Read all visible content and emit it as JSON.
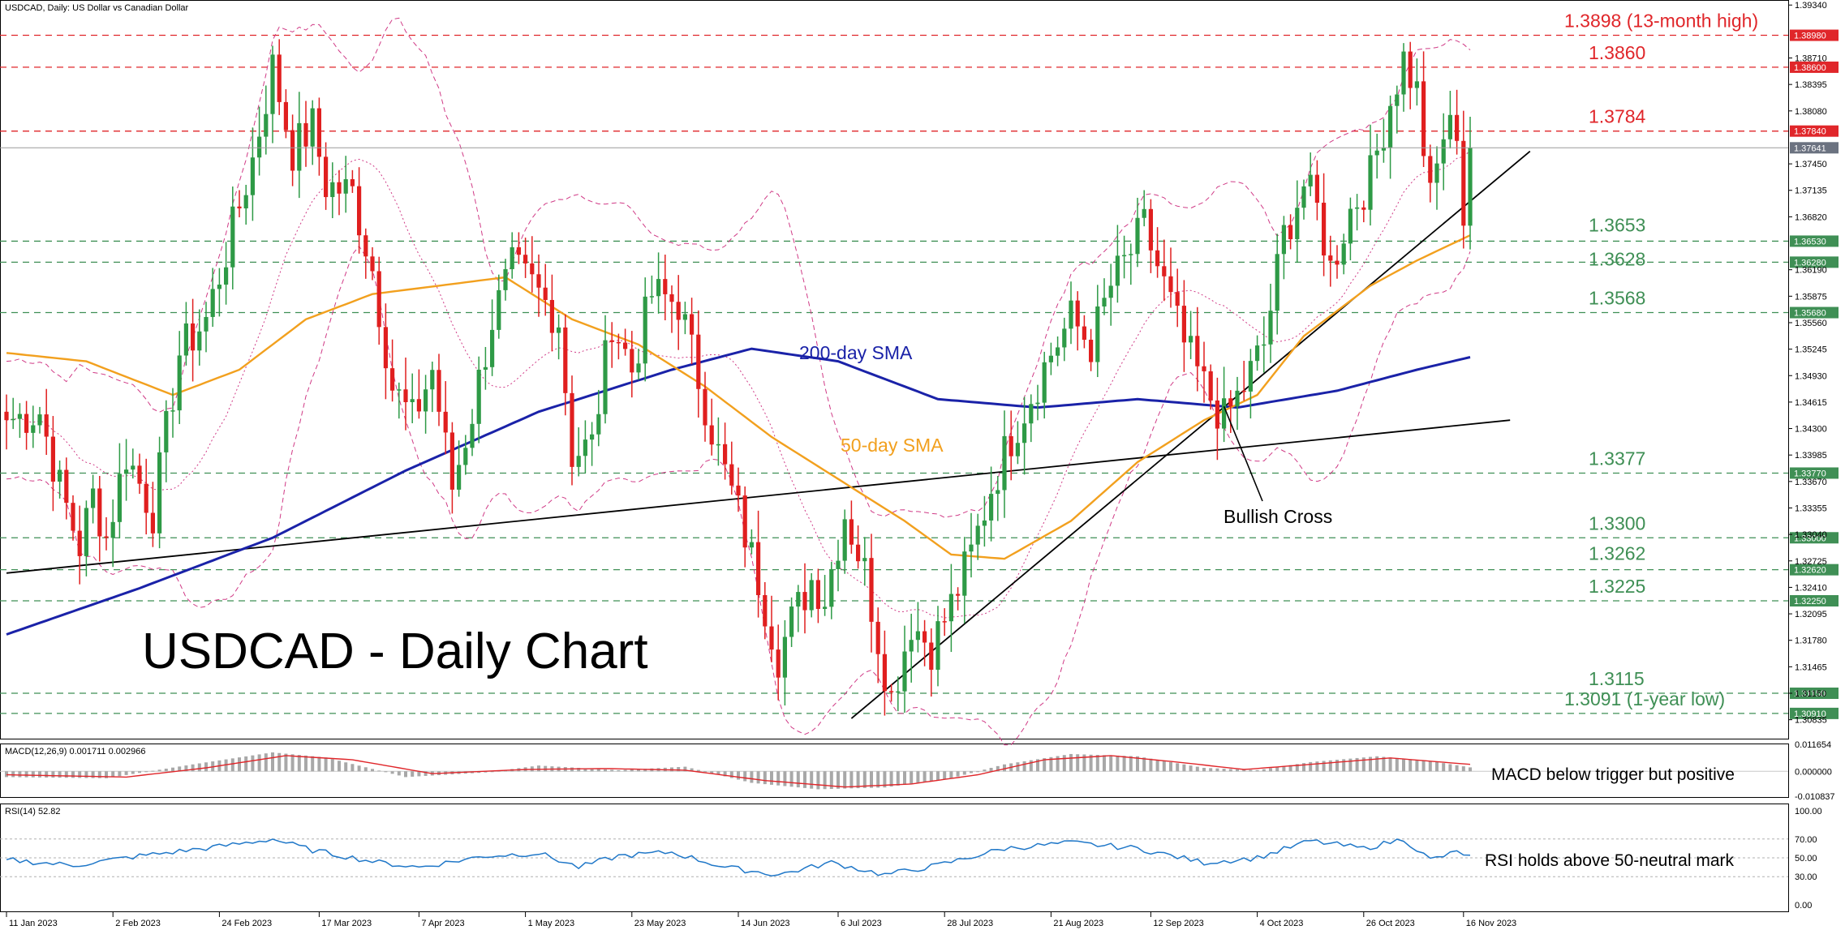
{
  "header": {
    "symbol_line": "USDCAD, Daily:  US Dollar vs Canadian Dollar"
  },
  "watermark_title": "USDCAD - Daily Chart",
  "colors": {
    "bull": "#2e9a46",
    "bear": "#e01f1f",
    "sma50": "#f2a01e",
    "sma200": "#1a22a8",
    "bollinger": "#d03a86",
    "resistance": "#e0262a",
    "support": "#3f8f55",
    "trendline": "#000000",
    "macd_hist": "#a8a8a8",
    "macd_signal": "#e0262a",
    "rsi_line": "#1f77c8",
    "price_tag": "#6b7280"
  },
  "price_axis": {
    "labels": [
      "1.39340",
      "1.38710",
      "1.38395",
      "1.38080",
      "1.37450",
      "1.37135",
      "1.36820",
      "1.36190",
      "1.35875",
      "1.35560",
      "1.35245",
      "1.34930",
      "1.34615",
      "1.34300",
      "1.33985",
      "1.33670",
      "1.33355",
      "1.33040",
      "1.32725",
      "1.32410",
      "1.32095",
      "1.31780",
      "1.31465",
      "1.31150",
      "1.30835"
    ],
    "current_price": "1.37641",
    "min": 1.306,
    "max": 1.394
  },
  "levels": [
    {
      "value": 1.3898,
      "text": "1.3898 (13-month high)",
      "tag": "1.38980",
      "kind": "resistance"
    },
    {
      "value": 1.386,
      "text": "1.3860",
      "tag": "1.38600",
      "kind": "resistance"
    },
    {
      "value": 1.3784,
      "text": "1.3784",
      "tag": "1.37840",
      "kind": "resistance"
    },
    {
      "value": 1.3653,
      "text": "1.3653",
      "tag": "1.36530",
      "kind": "support"
    },
    {
      "value": 1.3628,
      "text": "1.3628",
      "tag": "1.36280",
      "kind": "support"
    },
    {
      "value": 1.3568,
      "text": "1.3568",
      "tag": "1.35680",
      "kind": "support"
    },
    {
      "value": 1.3377,
      "text": "1.3377",
      "tag": "1.33770",
      "kind": "support"
    },
    {
      "value": 1.33,
      "text": "1.3300",
      "tag": "1.33000",
      "kind": "support"
    },
    {
      "value": 1.3262,
      "text": "1.3262",
      "tag": "1.32620",
      "kind": "support"
    },
    {
      "value": 1.3225,
      "text": "1.3225",
      "tag": "1.32250",
      "kind": "support"
    },
    {
      "value": 1.3115,
      "text": "1.3115",
      "tag": "1.31150",
      "kind": "support"
    },
    {
      "value": 1.3091,
      "text": "1.3091 (1-year low)",
      "tag": "1.30910",
      "kind": "support"
    }
  ],
  "annotations": {
    "sma200": "200-day SMA",
    "sma50": "50-day SMA",
    "bullish_cross": "Bullish Cross"
  },
  "macd": {
    "header": "MACD(12,26,9) 0.001711 0.002966",
    "note": "MACD below trigger but positive",
    "axis_labels": [
      "0.011654",
      "0.000000",
      "-0.010837"
    ],
    "min": -0.0108,
    "max": 0.0117
  },
  "rsi": {
    "header": "RSI(14) 52.82",
    "note": "RSI holds above 50-neutral mark",
    "axis_labels": [
      "100.00",
      "70.00",
      "50.00",
      "30.00",
      "0.00"
    ],
    "levels": [
      70,
      50,
      30
    ]
  },
  "x_axis": {
    "labels": [
      {
        "label": "11 Jan 2023",
        "day": 0
      },
      {
        "label": "2 Feb 2023",
        "day": 16
      },
      {
        "label": "24 Feb 2023",
        "day": 32
      },
      {
        "label": "17 Mar 2023",
        "day": 47
      },
      {
        "label": "7 Apr 2023",
        "day": 62
      },
      {
        "label": "1 May 2023",
        "day": 78
      },
      {
        "label": "23 May 2023",
        "day": 94
      },
      {
        "label": "14 Jun 2023",
        "day": 110
      },
      {
        "label": "6 Jul 2023",
        "day": 125
      },
      {
        "label": "28 Jul 2023",
        "day": 141
      },
      {
        "label": "21 Aug 2023",
        "day": 157
      },
      {
        "label": "12 Sep 2023",
        "day": 172
      },
      {
        "label": "4 Oct 2023",
        "day": 188
      },
      {
        "label": "26 Oct 2023",
        "day": 204
      },
      {
        "label": "16 Nov 2023",
        "day": 219
      }
    ]
  },
  "chart_data": {
    "type": "candlestick",
    "symbol": "USDCAD",
    "timeframe": "Daily",
    "start_date": "11 Jan 2023",
    "end_date": "17 Nov 2023",
    "trading_days": 221,
    "anchors": [
      {
        "day": 0,
        "close": 1.344
      },
      {
        "day": 5,
        "close": 1.345
      },
      {
        "day": 8,
        "close": 1.336
      },
      {
        "day": 11,
        "close": 1.329
      },
      {
        "day": 13,
        "close": 1.335
      },
      {
        "day": 15,
        "close": 1.33
      },
      {
        "day": 18,
        "close": 1.34
      },
      {
        "day": 22,
        "close": 1.333
      },
      {
        "day": 26,
        "close": 1.352
      },
      {
        "day": 30,
        "close": 1.356
      },
      {
        "day": 33,
        "close": 1.364
      },
      {
        "day": 37,
        "close": 1.375
      },
      {
        "day": 40,
        "close": 1.386
      },
      {
        "day": 43,
        "close": 1.376
      },
      {
        "day": 46,
        "close": 1.379
      },
      {
        "day": 48,
        "close": 1.372
      },
      {
        "day": 52,
        "close": 1.371
      },
      {
        "day": 55,
        "close": 1.362
      },
      {
        "day": 58,
        "close": 1.348
      },
      {
        "day": 61,
        "close": 1.344
      },
      {
        "day": 64,
        "close": 1.35
      },
      {
        "day": 67,
        "close": 1.336
      },
      {
        "day": 70,
        "close": 1.345
      },
      {
        "day": 73,
        "close": 1.356
      },
      {
        "day": 76,
        "close": 1.362
      },
      {
        "day": 79,
        "close": 1.36
      },
      {
        "day": 83,
        "close": 1.356
      },
      {
        "day": 85,
        "close": 1.34
      },
      {
        "day": 88,
        "close": 1.341
      },
      {
        "day": 91,
        "close": 1.356
      },
      {
        "day": 94,
        "close": 1.35
      },
      {
        "day": 97,
        "close": 1.359
      },
      {
        "day": 101,
        "close": 1.358
      },
      {
        "day": 104,
        "close": 1.349
      },
      {
        "day": 107,
        "close": 1.34
      },
      {
        "day": 110,
        "close": 1.333
      },
      {
        "day": 113,
        "close": 1.325
      },
      {
        "day": 116,
        "close": 1.316
      },
      {
        "day": 118,
        "close": 1.32
      },
      {
        "day": 121,
        "close": 1.325
      },
      {
        "day": 123,
        "close": 1.323
      },
      {
        "day": 126,
        "close": 1.333
      },
      {
        "day": 129,
        "close": 1.326
      },
      {
        "day": 131,
        "close": 1.318
      },
      {
        "day": 133,
        "close": 1.311
      },
      {
        "day": 136,
        "close": 1.32
      },
      {
        "day": 139,
        "close": 1.317
      },
      {
        "day": 142,
        "close": 1.322
      },
      {
        "day": 145,
        "close": 1.328
      },
      {
        "day": 148,
        "close": 1.336
      },
      {
        "day": 151,
        "close": 1.342
      },
      {
        "day": 154,
        "close": 1.347
      },
      {
        "day": 157,
        "close": 1.352
      },
      {
        "day": 160,
        "close": 1.356
      },
      {
        "day": 163,
        "close": 1.353
      },
      {
        "day": 166,
        "close": 1.36
      },
      {
        "day": 169,
        "close": 1.364
      },
      {
        "day": 171,
        "close": 1.367
      },
      {
        "day": 174,
        "close": 1.36
      },
      {
        "day": 177,
        "close": 1.353
      },
      {
        "day": 180,
        "close": 1.348
      },
      {
        "day": 183,
        "close": 1.344
      },
      {
        "day": 186,
        "close": 1.348
      },
      {
        "day": 189,
        "close": 1.353
      },
      {
        "day": 192,
        "close": 1.366
      },
      {
        "day": 195,
        "close": 1.372
      },
      {
        "day": 197,
        "close": 1.369
      },
      {
        "day": 199,
        "close": 1.362
      },
      {
        "day": 202,
        "close": 1.369
      },
      {
        "day": 205,
        "close": 1.373
      },
      {
        "day": 208,
        "close": 1.382
      },
      {
        "day": 210,
        "close": 1.387
      },
      {
        "day": 212,
        "close": 1.383
      },
      {
        "day": 214,
        "close": 1.37
      },
      {
        "day": 216,
        "close": 1.378
      },
      {
        "day": 218,
        "close": 1.379
      },
      {
        "day": 219,
        "close": 1.368
      },
      {
        "day": 220,
        "close": 1.3764
      }
    ],
    "sma50_anchors": [
      {
        "day": 0,
        "value": 1.352
      },
      {
        "day": 12,
        "value": 1.351
      },
      {
        "day": 25,
        "value": 1.347
      },
      {
        "day": 35,
        "value": 1.35
      },
      {
        "day": 45,
        "value": 1.356
      },
      {
        "day": 55,
        "value": 1.359
      },
      {
        "day": 65,
        "value": 1.36
      },
      {
        "day": 75,
        "value": 1.361
      },
      {
        "day": 85,
        "value": 1.356
      },
      {
        "day": 95,
        "value": 1.353
      },
      {
        "day": 105,
        "value": 1.348
      },
      {
        "day": 115,
        "value": 1.342
      },
      {
        "day": 125,
        "value": 1.337
      },
      {
        "day": 135,
        "value": 1.332
      },
      {
        "day": 142,
        "value": 1.328
      },
      {
        "day": 150,
        "value": 1.3275
      },
      {
        "day": 160,
        "value": 1.332
      },
      {
        "day": 170,
        "value": 1.339
      },
      {
        "day": 180,
        "value": 1.344
      },
      {
        "day": 188,
        "value": 1.347
      },
      {
        "day": 195,
        "value": 1.354
      },
      {
        "day": 205,
        "value": 1.36
      },
      {
        "day": 212,
        "value": 1.363
      },
      {
        "day": 220,
        "value": 1.366
      }
    ],
    "sma200_anchors": [
      {
        "day": 0,
        "value": 1.3185
      },
      {
        "day": 20,
        "value": 1.324
      },
      {
        "day": 40,
        "value": 1.33
      },
      {
        "day": 60,
        "value": 1.338
      },
      {
        "day": 80,
        "value": 1.345
      },
      {
        "day": 100,
        "value": 1.35
      },
      {
        "day": 112,
        "value": 1.3525
      },
      {
        "day": 125,
        "value": 1.351
      },
      {
        "day": 140,
        "value": 1.3465
      },
      {
        "day": 155,
        "value": 1.3455
      },
      {
        "day": 170,
        "value": 1.3465
      },
      {
        "day": 185,
        "value": 1.3455
      },
      {
        "day": 200,
        "value": 1.3475
      },
      {
        "day": 212,
        "value": 1.35
      },
      {
        "day": 220,
        "value": 1.3515
      }
    ],
    "trendlines": [
      {
        "from": {
          "day": 0,
          "price": 1.3258
        },
        "to": {
          "day": 226,
          "price": 1.344
        }
      },
      {
        "from": {
          "day": 127,
          "price": 1.3085
        },
        "to": {
          "day": 229,
          "price": 1.376
        }
      }
    ],
    "bullish_cross_day": 183,
    "series_macd": {
      "hist_anchors": [
        {
          "day": 0,
          "value": -0.0025
        },
        {
          "day": 15,
          "value": -0.003
        },
        {
          "day": 28,
          "value": 0.003
        },
        {
          "day": 40,
          "value": 0.0082
        },
        {
          "day": 48,
          "value": 0.006
        },
        {
          "day": 60,
          "value": -0.0025
        },
        {
          "day": 72,
          "value": -0.0005
        },
        {
          "day": 80,
          "value": 0.0025
        },
        {
          "day": 92,
          "value": 0.0005
        },
        {
          "day": 102,
          "value": 0.002
        },
        {
          "day": 112,
          "value": -0.005
        },
        {
          "day": 122,
          "value": -0.0078
        },
        {
          "day": 132,
          "value": -0.007
        },
        {
          "day": 142,
          "value": -0.003
        },
        {
          "day": 150,
          "value": 0.003
        },
        {
          "day": 160,
          "value": 0.0075
        },
        {
          "day": 170,
          "value": 0.0065
        },
        {
          "day": 180,
          "value": 0.0015
        },
        {
          "day": 188,
          "value": 0.0005
        },
        {
          "day": 196,
          "value": 0.004
        },
        {
          "day": 206,
          "value": 0.0065
        },
        {
          "day": 214,
          "value": 0.0045
        },
        {
          "day": 220,
          "value": 0.0017
        }
      ],
      "signal_anchors": [
        {
          "day": 0,
          "value": -0.0015
        },
        {
          "day": 18,
          "value": -0.0025
        },
        {
          "day": 30,
          "value": 0.0015
        },
        {
          "day": 42,
          "value": 0.0068
        },
        {
          "day": 52,
          "value": 0.005
        },
        {
          "day": 64,
          "value": -0.001
        },
        {
          "day": 78,
          "value": 0.0008
        },
        {
          "day": 90,
          "value": 0.0012
        },
        {
          "day": 102,
          "value": 0.0005
        },
        {
          "day": 114,
          "value": -0.004
        },
        {
          "day": 126,
          "value": -0.0068
        },
        {
          "day": 136,
          "value": -0.0055
        },
        {
          "day": 146,
          "value": -0.0015
        },
        {
          "day": 156,
          "value": 0.005
        },
        {
          "day": 166,
          "value": 0.0068
        },
        {
          "day": 176,
          "value": 0.004
        },
        {
          "day": 186,
          "value": 0.0008
        },
        {
          "day": 196,
          "value": 0.003
        },
        {
          "day": 208,
          "value": 0.0058
        },
        {
          "day": 220,
          "value": 0.003
        }
      ]
    },
    "series_rsi": {
      "anchors": [
        {
          "day": 0,
          "value": 48
        },
        {
          "day": 10,
          "value": 42
        },
        {
          "day": 20,
          "value": 52
        },
        {
          "day": 32,
          "value": 62
        },
        {
          "day": 40,
          "value": 70
        },
        {
          "day": 46,
          "value": 58
        },
        {
          "day": 56,
          "value": 45
        },
        {
          "day": 62,
          "value": 40
        },
        {
          "day": 72,
          "value": 52
        },
        {
          "day": 80,
          "value": 55
        },
        {
          "day": 86,
          "value": 40
        },
        {
          "day": 92,
          "value": 52
        },
        {
          "day": 100,
          "value": 56
        },
        {
          "day": 108,
          "value": 40
        },
        {
          "day": 116,
          "value": 32
        },
        {
          "day": 124,
          "value": 45
        },
        {
          "day": 132,
          "value": 32
        },
        {
          "day": 140,
          "value": 42
        },
        {
          "day": 150,
          "value": 60
        },
        {
          "day": 160,
          "value": 66
        },
        {
          "day": 170,
          "value": 60
        },
        {
          "day": 180,
          "value": 45
        },
        {
          "day": 188,
          "value": 50
        },
        {
          "day": 196,
          "value": 68
        },
        {
          "day": 204,
          "value": 60
        },
        {
          "day": 210,
          "value": 70
        },
        {
          "day": 214,
          "value": 48
        },
        {
          "day": 218,
          "value": 56
        },
        {
          "day": 220,
          "value": 52.82
        }
      ]
    }
  }
}
